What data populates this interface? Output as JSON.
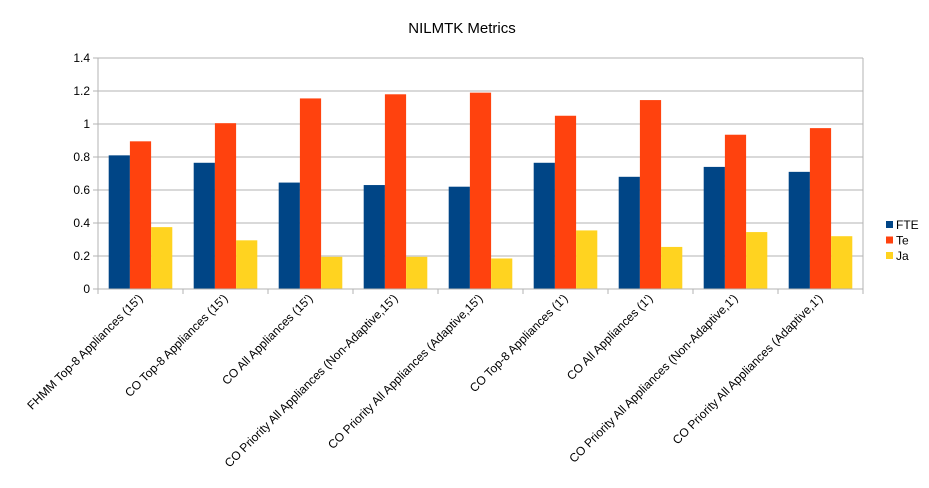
{
  "chart_data": {
    "type": "bar",
    "title": "NILMTK Metrics",
    "xlabel": "",
    "ylabel": "",
    "ylim": [
      0,
      1.4
    ],
    "yticks": [
      0,
      0.2,
      0.4,
      0.6,
      0.8,
      1,
      1.2,
      1.4
    ],
    "ytick_labels": [
      "0",
      "0.2",
      "0.4",
      "0.6",
      "0.8",
      "1",
      "1.2",
      "1.4"
    ],
    "grid": "horizontal",
    "legend_position": "right",
    "categories": [
      "FHMM Top-8 Appliances (15')",
      "CO Top-8 Appliances (15')",
      "CO All Appliances (15')",
      "CO Priority All Appliances (Non-Adaptive,15')",
      "CO Priority All Appliances (Adaptive,15')",
      "CO Top-8 Appliances (1')",
      "CO All Appliances (1')",
      "CO Priority All Appliances (Non-Adaptive,1')",
      "CO Priority All Appliances (Adaptive,1')"
    ],
    "series": [
      {
        "name": "FTE",
        "color": "#004586",
        "values": [
          0.81,
          0.765,
          0.645,
          0.63,
          0.62,
          0.765,
          0.68,
          0.74,
          0.71
        ]
      },
      {
        "name": "Te",
        "color": "#ff420e",
        "values": [
          0.895,
          1.005,
          1.155,
          1.18,
          1.19,
          1.05,
          1.145,
          0.935,
          0.975
        ]
      },
      {
        "name": "Ja",
        "color": "#ffd320",
        "values": [
          0.375,
          0.295,
          0.195,
          0.195,
          0.185,
          0.355,
          0.255,
          0.345,
          0.32
        ]
      }
    ]
  }
}
